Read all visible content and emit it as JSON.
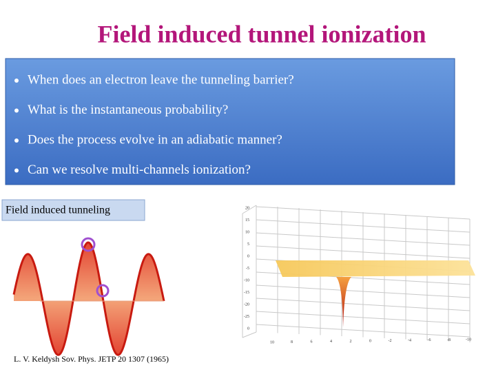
{
  "title": "Field induced tunnel ionization",
  "bullets": [
    "When does an electron leave the tunneling barrier?",
    "What is the instantaneous probability?",
    "Does the process evolve in an adiabatic manner?",
    "Can we resolve multi-channels ionization?"
  ],
  "figure_label": "Field induced tunneling",
  "plot": {
    "y_labels": [
      "20",
      "15",
      "10",
      "5",
      "0",
      "-5",
      "-10",
      "-15",
      "-20",
      "-25",
      "0"
    ],
    "x_labels": [
      "10",
      "8",
      "6",
      "4",
      "2",
      "0",
      "-2",
      "-4",
      "-6",
      "-8",
      "-10"
    ]
  },
  "reference": "L. V. Keldysh Sov. Phys. JETP 20 1307 (1965)"
}
